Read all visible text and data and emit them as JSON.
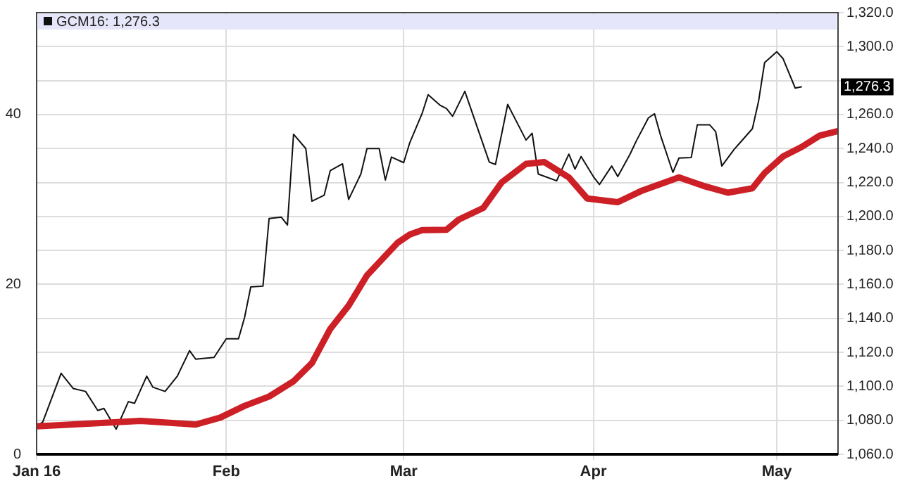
{
  "chart_data": {
    "type": "line",
    "x": [
      "2016-01-01",
      "2016-01-02",
      "2016-01-05",
      "2016-01-07",
      "2016-01-09",
      "2016-01-11",
      "2016-01-12",
      "2016-01-14",
      "2016-01-16",
      "2016-01-17",
      "2016-01-19",
      "2016-01-20",
      "2016-01-22",
      "2016-01-24",
      "2016-01-26",
      "2016-01-27",
      "2016-01-30",
      "2016-02-01",
      "2016-02-03",
      "2016-02-04",
      "2016-02-05",
      "2016-02-07",
      "2016-02-08",
      "2016-02-10",
      "2016-02-11",
      "2016-02-12",
      "2016-02-14",
      "2016-02-15",
      "2016-02-17",
      "2016-02-18",
      "2016-02-20",
      "2016-02-21",
      "2016-02-23",
      "2016-02-24",
      "2016-02-26",
      "2016-02-27",
      "2016-02-28",
      "2016-03-01",
      "2016-03-02",
      "2016-03-04",
      "2016-03-05",
      "2016-03-07",
      "2016-03-08",
      "2016-03-09",
      "2016-03-11",
      "2016-03-15",
      "2016-03-16",
      "2016-03-18",
      "2016-03-21",
      "2016-03-22",
      "2016-03-23",
      "2016-03-26",
      "2016-03-28",
      "2016-03-29",
      "2016-03-30",
      "2016-04-01",
      "2016-04-02",
      "2016-04-04",
      "2016-04-05",
      "2016-04-07",
      "2016-04-08",
      "2016-04-10",
      "2016-04-11",
      "2016-04-12",
      "2016-04-14",
      "2016-04-15",
      "2016-04-17",
      "2016-04-18",
      "2016-04-20",
      "2016-04-21",
      "2016-04-22",
      "2016-04-24",
      "2016-04-25",
      "2016-04-27",
      "2016-04-28",
      "2016-04-29",
      "2016-05-01",
      "2016-05-02",
      "2016-05-04",
      "2016-05-05"
    ],
    "series": [
      {
        "name": "GCM16: 1,276.3",
        "color": "#111111",
        "axis": "y2",
        "values": [
          1076.5,
          1079,
          1107.7,
          1098.7,
          1097,
          1085.8,
          1087,
          1074.8,
          1091,
          1090,
          1106,
          1099.5,
          1097,
          1106,
          1121,
          1116,
          1117,
          1128,
          1128,
          1140.6,
          1158.5,
          1159,
          1198.8,
          1199.6,
          1195,
          1248.4,
          1240,
          1209,
          1212.5,
          1227,
          1231,
          1210,
          1225,
          1240,
          1240,
          1221.5,
          1235,
          1231.7,
          1243.5,
          1260.5,
          1271.7,
          1265.4,
          1263.5,
          1259,
          1273.7,
          1232,
          1230.6,
          1266,
          1245,
          1249,
          1225,
          1221,
          1236.7,
          1227.9,
          1235.3,
          1223.5,
          1218.8,
          1229.7,
          1223.5,
          1236.7,
          1244.3,
          1258,
          1260.5,
          1247.6,
          1226,
          1234.4,
          1234.7,
          1254,
          1254,
          1250,
          1229.7,
          1239.4,
          1243.5,
          1251.7,
          1267.6,
          1290.6,
          1297,
          1293,
          1275.6,
          1276.3
        ]
      },
      {
        "color": "#cc1f26",
        "axis": "y2",
        "x": [
          "2016-01-01",
          "2016-01-11",
          "2016-01-18",
          "2016-01-27",
          "2016-01-31",
          "2016-02-04",
          "2016-02-08",
          "2016-02-12",
          "2016-02-15",
          "2016-02-18",
          "2016-02-21",
          "2016-02-24",
          "2016-02-29",
          "2016-03-02",
          "2016-03-04",
          "2016-03-08",
          "2016-03-10",
          "2016-03-14",
          "2016-03-17",
          "2016-03-21",
          "2016-03-24",
          "2016-03-28",
          "2016-03-31",
          "2016-04-05",
          "2016-04-09",
          "2016-04-15",
          "2016-04-19",
          "2016-04-23",
          "2016-04-27",
          "2016-04-29",
          "2016-05-02",
          "2016-05-05",
          "2016-05-08",
          "2016-05-11"
        ],
        "values": [
          1076.5,
          1078.3,
          1079.7,
          1077.5,
          1081.6,
          1088.5,
          1094,
          1103,
          1113.7,
          1133.8,
          1147.5,
          1165.3,
          1184.5,
          1189.4,
          1192,
          1192.2,
          1198.2,
          1205,
          1220,
          1231,
          1232,
          1223,
          1210.6,
          1208.4,
          1215.3,
          1223,
          1218,
          1214,
          1216.6,
          1225.6,
          1235.3,
          1240.8,
          1247.6,
          1250.3
        ]
      }
    ],
    "xlim": [
      "2016-01-01",
      "2016-05-11"
    ],
    "xticks": [
      {
        "value": "2016-01-01",
        "label": "Jan 16"
      },
      {
        "value": "2016-02-01",
        "label": "Feb"
      },
      {
        "value": "2016-03-01",
        "label": "Mar"
      },
      {
        "value": "2016-04-01",
        "label": "Apr"
      },
      {
        "value": "2016-05-01",
        "label": "May"
      }
    ],
    "ylim": [
      0,
      52
    ],
    "yticks": [
      0,
      20,
      40
    ],
    "y2lim": [
      1060,
      1320
    ],
    "y2ticks": [
      {
        "value": 1060,
        "label": "1,060.0"
      },
      {
        "value": 1080,
        "label": "1,080.0"
      },
      {
        "value": 1100,
        "label": "1,100.0"
      },
      {
        "value": 1120,
        "label": "1,120.0"
      },
      {
        "value": 1140,
        "label": "1,140.0"
      },
      {
        "value": 1160,
        "label": "1,160.0"
      },
      {
        "value": 1180,
        "label": "1,180.0"
      },
      {
        "value": 1200,
        "label": "1,200.0"
      },
      {
        "value": 1220,
        "label": "1,220.0"
      },
      {
        "value": 1240,
        "label": "1,240.0"
      },
      {
        "value": 1260,
        "label": "1,260.0"
      },
      {
        "value": 1280,
        "label": null
      },
      {
        "value": 1300,
        "label": "1,300.0"
      },
      {
        "value": 1320,
        "label": "1,320.0"
      }
    ],
    "annotations": [
      "1,276.3"
    ],
    "grid": true,
    "legend": "top left",
    "marker": "none",
    "line_style": "solid"
  }
}
